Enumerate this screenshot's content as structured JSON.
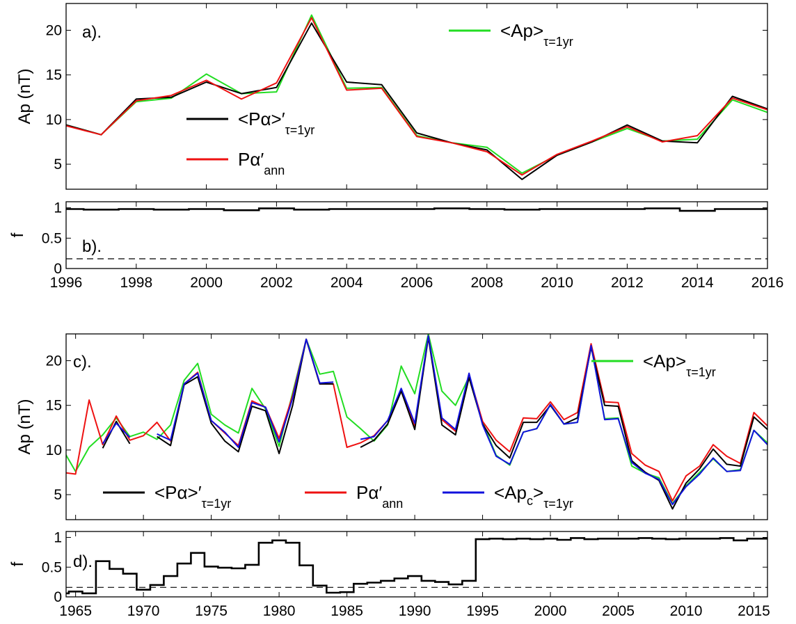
{
  "chart_data": [
    {
      "id": "a",
      "type": "line",
      "annotation": "a).",
      "ylabel": "Ap  (nT)",
      "xlim": [
        1996,
        2016
      ],
      "ylim": [
        2.2,
        23
      ],
      "yticks": [
        "5",
        "10",
        "15",
        "20"
      ],
      "series": [
        {
          "key": "Ap",
          "name": "<Ap>",
          "sub": "τ=1yr",
          "color": "#22dd22",
          "x": [
            1996,
            1997,
            1998,
            1999,
            2000,
            2001,
            2002,
            2003,
            2004,
            2005,
            2006,
            2007,
            2008,
            2009,
            2010,
            2011,
            2012,
            2013,
            2014,
            2015,
            2016
          ],
          "y": [
            9.4,
            8.3,
            12.0,
            12.4,
            15.1,
            12.9,
            13.1,
            21.7,
            13.5,
            13.6,
            8.2,
            7.4,
            6.9,
            4.0,
            6.0,
            7.5,
            9.0,
            7.6,
            7.8,
            12.2,
            10.8
          ]
        },
        {
          "key": "Pa",
          "name": "<Pα>′",
          "sub": "τ=1yr",
          "color": "#000000",
          "x": [
            1996,
            1997,
            1998,
            1999,
            2000,
            2001,
            2002,
            2003,
            2004,
            2005,
            2006,
            2007,
            2008,
            2009,
            2010,
            2011,
            2012,
            2013,
            2014,
            2015,
            2016
          ],
          "y": [
            9.4,
            8.3,
            12.3,
            12.5,
            14.2,
            12.9,
            13.6,
            20.8,
            14.2,
            13.9,
            8.5,
            7.4,
            6.6,
            3.3,
            6.0,
            7.5,
            9.4,
            7.6,
            7.4,
            12.6,
            11.2
          ]
        },
        {
          "key": "Paann",
          "name": "Pα′",
          "sub": "ann",
          "color": "#ee1111",
          "x": [
            1996,
            1997,
            1998,
            1999,
            2000,
            2001,
            2002,
            2003,
            2004,
            2005,
            2006,
            2007,
            2008,
            2009,
            2010,
            2011,
            2012,
            2013,
            2014,
            2015,
            2016
          ],
          "y": [
            9.3,
            8.3,
            12.1,
            12.7,
            14.4,
            12.3,
            14.1,
            21.4,
            13.3,
            13.5,
            8.1,
            7.4,
            6.4,
            3.8,
            6.1,
            7.6,
            9.2,
            7.5,
            8.2,
            12.4,
            11.1
          ]
        }
      ]
    },
    {
      "id": "b",
      "type": "line",
      "annotation": "b).",
      "ylabel": "f",
      "xlim": [
        1996,
        2016
      ],
      "ylim": [
        0,
        1.1
      ],
      "yticks": [
        "0",
        "0.5",
        "1"
      ],
      "xticks": [
        "1996",
        "1998",
        "2000",
        "2002",
        "2004",
        "2006",
        "2008",
        "2010",
        "2012",
        "2014",
        "2016"
      ],
      "threshold": 0.16,
      "step": {
        "x": [
          1996,
          1997,
          1998,
          1999,
          2000,
          2001,
          2002,
          2003,
          2004,
          2005,
          2006,
          2007,
          2008,
          2009,
          2010,
          2011,
          2012,
          2013,
          2014,
          2015,
          2016
        ],
        "y": [
          0.98,
          0.97,
          0.98,
          0.97,
          0.98,
          0.96,
          0.99,
          0.97,
          0.98,
          0.98,
          0.98,
          0.99,
          0.98,
          0.97,
          0.98,
          0.98,
          0.98,
          0.99,
          0.95,
          0.98,
          0.98
        ]
      }
    },
    {
      "id": "c",
      "type": "line",
      "annotation": "c).",
      "ylabel": "Ap  (nT)",
      "xlim": [
        1964.3,
        2016
      ],
      "ylim": [
        2.2,
        23
      ],
      "yticks": [
        "5",
        "10",
        "15",
        "20"
      ],
      "series": [
        {
          "key": "Ap",
          "name": "<Ap>",
          "sub": "τ=1yr",
          "color": "#22dd22",
          "x": [
            1964,
            1965,
            1966,
            1967,
            1968,
            1969,
            1970,
            1971,
            1972,
            1973,
            1974,
            1975,
            1976,
            1977,
            1978,
            1979,
            1980,
            1981,
            1982,
            1983,
            1984,
            1985,
            1986,
            1987,
            1988,
            1989,
            1990,
            1991,
            1992,
            1993,
            1994,
            1995,
            1996,
            1997,
            1998,
            1999,
            2000,
            2001,
            2002,
            2003,
            2004,
            2005,
            2006,
            2007,
            2008,
            2009,
            2010,
            2011,
            2012,
            2013,
            2014,
            2015,
            2016
          ],
          "y": [
            10.2,
            7.6,
            10.3,
            11.7,
            13.6,
            11.5,
            12.0,
            11.2,
            12.8,
            17.8,
            19.7,
            14.0,
            12.8,
            11.9,
            16.9,
            14.6,
            10.4,
            16.4,
            22.4,
            18.5,
            18.8,
            13.7,
            12.4,
            11.0,
            12.8,
            19.4,
            16.3,
            23.0,
            16.6,
            15.0,
            18.2,
            13.1,
            9.4,
            8.3,
            12.0,
            12.4,
            15.1,
            12.9,
            13.1,
            21.7,
            13.5,
            13.6,
            8.2,
            7.4,
            6.9,
            4.0,
            6.0,
            7.5,
            9.0,
            7.6,
            7.8,
            12.2,
            10.8
          ]
        },
        {
          "key": "Paann",
          "name": "Pα′",
          "sub": "ann",
          "color": "#ee1111",
          "x": [
            1964,
            1965,
            1966,
            1967,
            1968,
            1969,
            1970,
            1971,
            1972,
            1973,
            1974,
            1975,
            1976,
            1977,
            1978,
            1979,
            1980,
            1981,
            1982,
            1983,
            1984,
            1985,
            1986,
            1987,
            1988,
            1989,
            1990,
            1991,
            1992,
            1993,
            1994,
            1995,
            1996,
            1997,
            1998,
            1999,
            2000,
            2001,
            2002,
            2003,
            2004,
            2005,
            2006,
            2007,
            2008,
            2009,
            2010,
            2011,
            2012,
            2013,
            2014,
            2015,
            2016
          ],
          "y": [
            7.5,
            7.3,
            15.6,
            10.6,
            13.8,
            11.1,
            11.6,
            13.1,
            11.0,
            17.4,
            18.7,
            13.3,
            11.9,
            10.5,
            15.5,
            14.8,
            11.3,
            16.1,
            22.4,
            17.4,
            17.4,
            10.3,
            10.8,
            11.6,
            13.3,
            16.6,
            12.6,
            22.8,
            13.4,
            12.1,
            18.4,
            13.2,
            11.1,
            9.8,
            13.6,
            13.5,
            15.4,
            13.4,
            14.2,
            21.9,
            15.4,
            15.3,
            9.6,
            8.3,
            7.6,
            4.3,
            7.1,
            8.2,
            10.6,
            9.3,
            8.5,
            14.2,
            12.7
          ]
        },
        {
          "key": "Pa",
          "name": "<Pα>′",
          "sub": "τ=1yr",
          "color": "#000000",
          "segments": [
            {
              "x": [
                1967,
                1968,
                1969
              ],
              "y": [
                10.2,
                13.2,
                10.7
              ]
            },
            {
              "x": [
                1971,
                1972,
                1973,
                1974,
                1975,
                1976,
                1977,
                1978,
                1979,
                1980,
                1981,
                1982,
                1983,
                1984
              ],
              "y": [
                11.5,
                10.5,
                17.3,
                18.2,
                13.0,
                11.0,
                9.8,
                14.9,
                14.4,
                9.6,
                15.0,
                22.4,
                17.4,
                17.4
              ]
            },
            {
              "x": [
                1986,
                1987,
                1988,
                1989,
                1990,
                1991,
                1992,
                1993,
                1994,
                1995,
                1996,
                1997,
                1998,
                1999,
                2000,
                2001,
                2002,
                2003,
                2004,
                2005,
                2006,
                2007,
                2008,
                2009,
                2010,
                2011,
                2012,
                2013,
                2014,
                2015,
                2016
              ],
              "y": [
                10.3,
                11.1,
                12.9,
                16.6,
                12.3,
                22.6,
                12.8,
                11.7,
                18.1,
                12.9,
                10.5,
                9.1,
                13.1,
                13.1,
                15.0,
                12.9,
                13.6,
                21.5,
                15.0,
                14.9,
                8.8,
                7.5,
                6.6,
                3.4,
                6.3,
                7.9,
                10.1,
                8.4,
                8.2,
                13.7,
                12.3
              ]
            }
          ]
        },
        {
          "key": "Apc",
          "name": "<Ap",
          "sub_c": "c",
          "sub": "τ=1yr",
          "color": "#1111dd",
          "segments": [
            {
              "x": [
                1967,
                1968,
                1969
              ],
              "y": [
                10.7,
                13.0,
                11.4
              ]
            },
            {
              "x": [
                1971,
                1972,
                1973,
                1974,
                1975,
                1976,
                1977,
                1978,
                1979,
                1980,
                1981,
                1982,
                1983,
                1984
              ],
              "y": [
                11.8,
                11.1,
                17.4,
                18.6,
                13.3,
                12.0,
                10.3,
                15.3,
                14.8,
                10.9,
                15.8,
                22.4,
                17.5,
                17.6
              ]
            },
            {
              "x": [
                1986,
                1987,
                1988,
                1989,
                1990,
                1991,
                1992,
                1993,
                1994,
                1995,
                1996,
                1997,
                1998,
                1999,
                2000,
                2001,
                2002,
                2003,
                2004,
                2005,
                2006,
                2007,
                2008,
                2009,
                2010,
                2011,
                2012,
                2013,
                2014,
                2015,
                2016
              ],
              "y": [
                11.2,
                11.5,
                13.3,
                16.9,
                13.0,
                22.8,
                13.6,
                12.3,
                18.6,
                12.8,
                9.3,
                8.4,
                12.0,
                12.4,
                15.1,
                12.9,
                13.1,
                21.7,
                13.4,
                13.5,
                8.6,
                7.4,
                6.7,
                3.9,
                5.9,
                7.3,
                9.1,
                7.6,
                7.7,
                12.2,
                10.6
              ]
            }
          ]
        }
      ]
    },
    {
      "id": "d",
      "type": "line",
      "annotation": "d).",
      "ylabel": "f",
      "xlim": [
        1964.3,
        2016
      ],
      "ylim": [
        0,
        1.1
      ],
      "yticks": [
        "0",
        "0.5",
        "1"
      ],
      "xticks": [
        "1965",
        "1970",
        "1975",
        "1980",
        "1985",
        "1990",
        "1995",
        "2000",
        "2005",
        "2010",
        "2015"
      ],
      "threshold": 0.16,
      "step": {
        "x": [
          1964,
          1965,
          1966,
          1967,
          1968,
          1969,
          1970,
          1971,
          1972,
          1973,
          1974,
          1975,
          1976,
          1977,
          1978,
          1979,
          1980,
          1981,
          1982,
          1983,
          1984,
          1985,
          1986,
          1987,
          1988,
          1989,
          1990,
          1991,
          1992,
          1993,
          1994,
          1995,
          1996,
          1997,
          1998,
          1999,
          2000,
          2001,
          2002,
          2003,
          2004,
          2005,
          2006,
          2007,
          2008,
          2009,
          2010,
          2011,
          2012,
          2013,
          2014,
          2015,
          2016
        ],
        "y": [
          0.06,
          0.09,
          0.06,
          0.6,
          0.47,
          0.39,
          0.12,
          0.2,
          0.35,
          0.56,
          0.74,
          0.51,
          0.49,
          0.48,
          0.54,
          0.91,
          0.95,
          0.91,
          0.53,
          0.19,
          0.07,
          0.08,
          0.22,
          0.24,
          0.27,
          0.31,
          0.35,
          0.27,
          0.25,
          0.21,
          0.27,
          0.97,
          0.98,
          0.97,
          0.98,
          0.97,
          0.98,
          0.96,
          0.99,
          0.97,
          0.98,
          0.98,
          0.98,
          0.99,
          0.98,
          0.97,
          0.98,
          0.98,
          0.98,
          0.99,
          0.95,
          0.98,
          0.98
        ]
      }
    }
  ]
}
